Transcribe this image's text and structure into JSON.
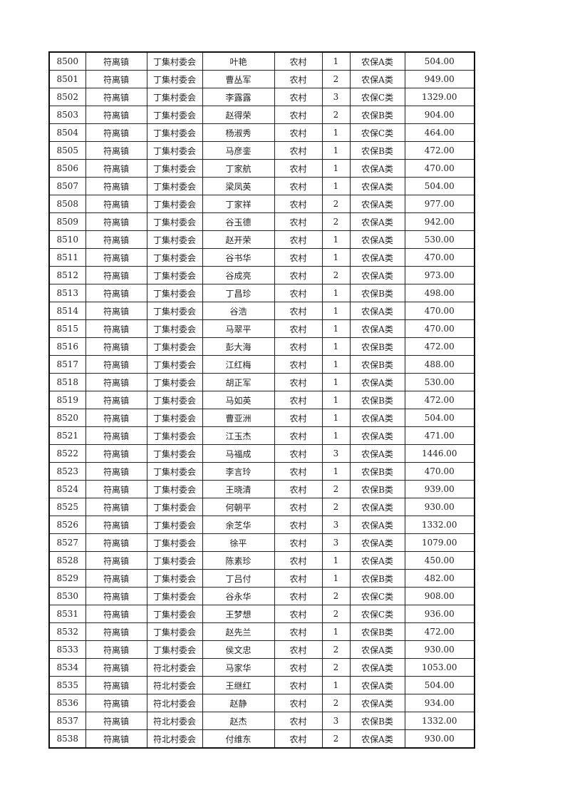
{
  "table": {
    "rows": [
      [
        "8500",
        "符离镇",
        "丁集村委会",
        "叶艳",
        "农村",
        "1",
        "农保A类",
        "504.00"
      ],
      [
        "8501",
        "符离镇",
        "丁集村委会",
        "曹丛军",
        "农村",
        "2",
        "农保A类",
        "949.00"
      ],
      [
        "8502",
        "符离镇",
        "丁集村委会",
        "李露露",
        "农村",
        "3",
        "农保C类",
        "1329.00"
      ],
      [
        "8503",
        "符离镇",
        "丁集村委会",
        "赵得荣",
        "农村",
        "2",
        "农保B类",
        "904.00"
      ],
      [
        "8504",
        "符离镇",
        "丁集村委会",
        "杨淑秀",
        "农村",
        "1",
        "农保C类",
        "464.00"
      ],
      [
        "8505",
        "符离镇",
        "丁集村委会",
        "马彦銮",
        "农村",
        "1",
        "农保B类",
        "472.00"
      ],
      [
        "8506",
        "符离镇",
        "丁集村委会",
        "丁家航",
        "农村",
        "1",
        "农保A类",
        "470.00"
      ],
      [
        "8507",
        "符离镇",
        "丁集村委会",
        "梁凤英",
        "农村",
        "1",
        "农保A类",
        "504.00"
      ],
      [
        "8508",
        "符离镇",
        "丁集村委会",
        "丁家祥",
        "农村",
        "2",
        "农保A类",
        "977.00"
      ],
      [
        "8509",
        "符离镇",
        "丁集村委会",
        "谷玉德",
        "农村",
        "2",
        "农保A类",
        "942.00"
      ],
      [
        "8510",
        "符离镇",
        "丁集村委会",
        "赵开荣",
        "农村",
        "1",
        "农保A类",
        "530.00"
      ],
      [
        "8511",
        "符离镇",
        "丁集村委会",
        "谷书华",
        "农村",
        "1",
        "农保A类",
        "470.00"
      ],
      [
        "8512",
        "符离镇",
        "丁集村委会",
        "谷成亮",
        "农村",
        "2",
        "农保A类",
        "973.00"
      ],
      [
        "8513",
        "符离镇",
        "丁集村委会",
        "丁昌珍",
        "农村",
        "1",
        "农保B类",
        "498.00"
      ],
      [
        "8514",
        "符离镇",
        "丁集村委会",
        "谷浩",
        "农村",
        "1",
        "农保A类",
        "470.00"
      ],
      [
        "8515",
        "符离镇",
        "丁集村委会",
        "马翠平",
        "农村",
        "1",
        "农保A类",
        "470.00"
      ],
      [
        "8516",
        "符离镇",
        "丁集村委会",
        "彭大海",
        "农村",
        "1",
        "农保B类",
        "472.00"
      ],
      [
        "8517",
        "符离镇",
        "丁集村委会",
        "江红梅",
        "农村",
        "1",
        "农保B类",
        "488.00"
      ],
      [
        "8518",
        "符离镇",
        "丁集村委会",
        "胡正军",
        "农村",
        "1",
        "农保A类",
        "530.00"
      ],
      [
        "8519",
        "符离镇",
        "丁集村委会",
        "马如英",
        "农村",
        "1",
        "农保B类",
        "472.00"
      ],
      [
        "8520",
        "符离镇",
        "丁集村委会",
        "曹亚洲",
        "农村",
        "1",
        "农保A类",
        "504.00"
      ],
      [
        "8521",
        "符离镇",
        "丁集村委会",
        "江玉杰",
        "农村",
        "1",
        "农保A类",
        "471.00"
      ],
      [
        "8522",
        "符离镇",
        "丁集村委会",
        "马福成",
        "农村",
        "3",
        "农保A类",
        "1446.00"
      ],
      [
        "8523",
        "符离镇",
        "丁集村委会",
        "李言玲",
        "农村",
        "1",
        "农保B类",
        "470.00"
      ],
      [
        "8524",
        "符离镇",
        "丁集村委会",
        "王晓清",
        "农村",
        "2",
        "农保B类",
        "939.00"
      ],
      [
        "8525",
        "符离镇",
        "丁集村委会",
        "何朝平",
        "农村",
        "2",
        "农保A类",
        "930.00"
      ],
      [
        "8526",
        "符离镇",
        "丁集村委会",
        "余芝华",
        "农村",
        "3",
        "农保A类",
        "1332.00"
      ],
      [
        "8527",
        "符离镇",
        "丁集村委会",
        "徐平",
        "农村",
        "3",
        "农保A类",
        "1079.00"
      ],
      [
        "8528",
        "符离镇",
        "丁集村委会",
        "陈素珍",
        "农村",
        "1",
        "农保A类",
        "450.00"
      ],
      [
        "8529",
        "符离镇",
        "丁集村委会",
        "丁吕付",
        "农村",
        "1",
        "农保B类",
        "482.00"
      ],
      [
        "8530",
        "符离镇",
        "丁集村委会",
        "谷永华",
        "农村",
        "2",
        "农保C类",
        "908.00"
      ],
      [
        "8531",
        "符离镇",
        "丁集村委会",
        "王梦想",
        "农村",
        "2",
        "农保C类",
        "936.00"
      ],
      [
        "8532",
        "符离镇",
        "丁集村委会",
        "赵先兰",
        "农村",
        "1",
        "农保B类",
        "472.00"
      ],
      [
        "8533",
        "符离镇",
        "丁集村委会",
        "侯文忠",
        "农村",
        "2",
        "农保A类",
        "930.00"
      ],
      [
        "8534",
        "符离镇",
        "符北村委会",
        "马家华",
        "农村",
        "2",
        "农保A类",
        "1053.00"
      ],
      [
        "8535",
        "符离镇",
        "符北村委会",
        "王继红",
        "农村",
        "1",
        "农保A类",
        "504.00"
      ],
      [
        "8536",
        "符离镇",
        "符北村委会",
        "赵静",
        "农村",
        "2",
        "农保A类",
        "934.00"
      ],
      [
        "8537",
        "符离镇",
        "符北村委会",
        "赵杰",
        "农村",
        "3",
        "农保B类",
        "1332.00"
      ],
      [
        "8538",
        "符离镇",
        "符北村委会",
        "付维东",
        "农村",
        "2",
        "农保A类",
        "930.00"
      ]
    ]
  }
}
